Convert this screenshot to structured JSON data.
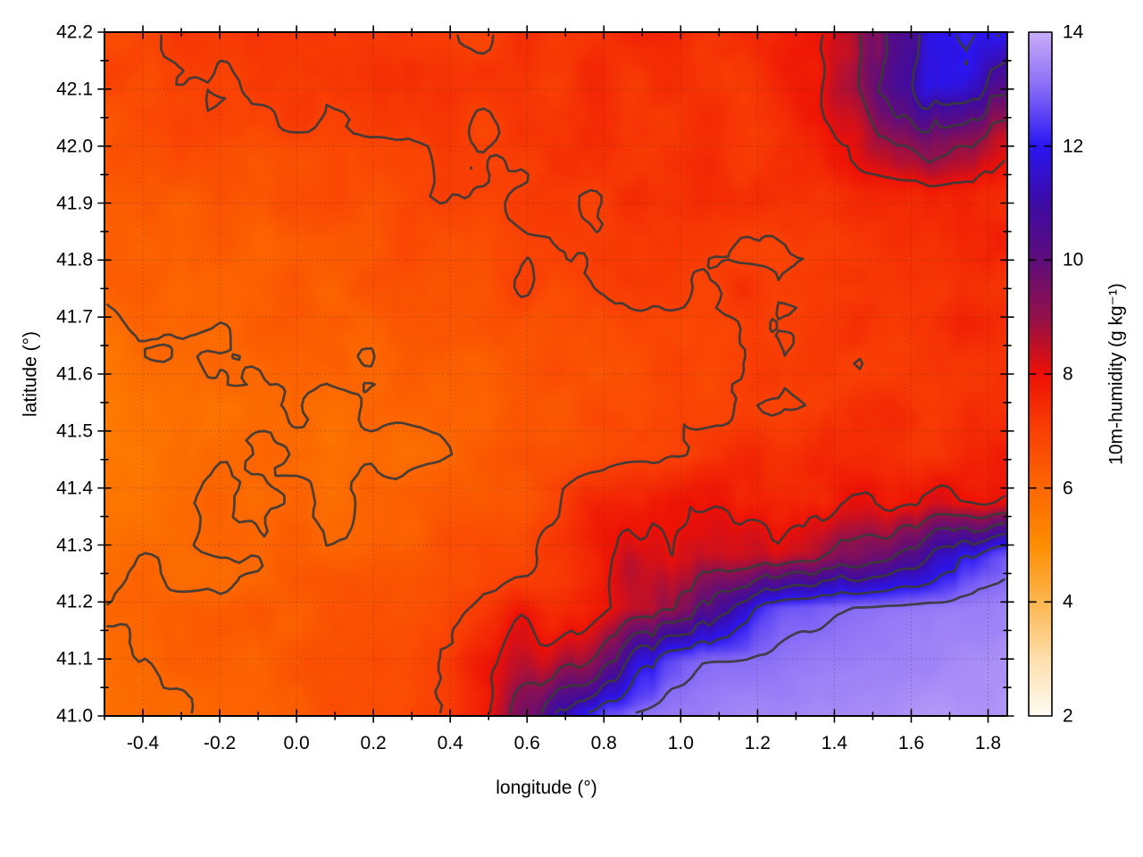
{
  "figure": {
    "xlabel": "longitude (°)",
    "ylabel": "latitude (°)",
    "colorbar_label": "10m-humidity (g kg⁻¹)",
    "background": "#ffffff",
    "axis_color": "#000000",
    "grid_dot_color": "rgba(70,45,20,0.5)"
  },
  "chart_data": {
    "type": "heatmap",
    "title": "",
    "xlabel": "longitude (°)",
    "ylabel": "latitude (°)",
    "colorbar_label": "10m-humidity (g kg⁻¹)",
    "xlim": [
      -0.5,
      1.85
    ],
    "ylim": [
      41.0,
      42.2
    ],
    "clim": [
      2,
      14
    ],
    "grid_on": true,
    "x_major_ticks": [
      -0.4,
      -0.2,
      0.0,
      0.2,
      0.4,
      0.6,
      0.8,
      1.0,
      1.2,
      1.4,
      1.6,
      1.8
    ],
    "x_major_labels": [
      "-0.4",
      "-0.2",
      "0.0",
      "0.2",
      "0.4",
      "0.6",
      "0.8",
      "1.0",
      "1.2",
      "1.4",
      "1.6",
      "1.8"
    ],
    "x_minor_ticks": [
      -0.5,
      -0.3,
      -0.1,
      0.1,
      0.3,
      0.5,
      0.7,
      0.9,
      1.1,
      1.3,
      1.5,
      1.7
    ],
    "y_major_ticks": [
      41.0,
      41.1,
      41.2,
      41.3,
      41.4,
      41.5,
      41.6,
      41.7,
      41.8,
      41.9,
      42.0,
      42.1,
      42.2
    ],
    "y_major_labels": [
      "41.0",
      "41.1",
      "41.2",
      "41.3",
      "41.4",
      "41.5",
      "41.6",
      "41.7",
      "41.8",
      "41.9",
      "42.0",
      "42.1",
      "42.2"
    ],
    "y_minor_ticks": [
      41.05,
      41.15,
      41.25,
      41.35,
      41.45,
      41.55,
      41.65,
      41.75,
      41.85,
      41.95,
      42.05,
      42.15
    ],
    "colorbar_ticks": [
      2,
      4,
      6,
      8,
      10,
      12,
      14
    ],
    "colorbar_tick_labels": [
      "2",
      "4",
      "6",
      "8",
      "10",
      "12",
      "14"
    ],
    "colorbar_dash_levels": [
      4,
      6,
      8,
      10,
      12
    ],
    "palette": [
      [
        2,
        "#fffcf2"
      ],
      [
        3,
        "#fedfac"
      ],
      [
        4,
        "#fcb64e"
      ],
      [
        5,
        "#fe8d00"
      ],
      [
        6,
        "#fc6700"
      ],
      [
        7,
        "#f94004"
      ],
      [
        8,
        "#ed1005"
      ],
      [
        9,
        "#92104a"
      ],
      [
        10,
        "#5e0d7b"
      ],
      [
        11,
        "#3c0ba5"
      ],
      [
        12,
        "#2a16f2"
      ],
      [
        13,
        "#8569f6"
      ],
      [
        14,
        "#c9aef8"
      ]
    ],
    "contour_levels": [
      5,
      6,
      7,
      8,
      9,
      10,
      11,
      12,
      13
    ],
    "contour_color": "#3a3a3a",
    "grid": {
      "comment": "10m humidity (g/kg), rows ordered north(42.2) to south(41.0), cols west(-0.5) to east(1.85)",
      "ncols": 25,
      "nrows": 14,
      "values_north_to_south": [
        [
          6.9,
          7.0,
          7.1,
          7.0,
          7.1,
          7.2,
          7.1,
          7.2,
          7.3,
          7.2,
          7.1,
          7.3,
          7.2,
          7.3,
          7.4,
          7.3,
          7.2,
          7.4,
          7.5,
          7.7,
          8.6,
          10.2,
          11.6,
          12.2,
          11.7
        ],
        [
          6.8,
          6.9,
          6.8,
          6.9,
          7.0,
          7.1,
          7.0,
          7.1,
          7.2,
          7.1,
          7.2,
          7.1,
          7.2,
          7.4,
          7.3,
          7.4,
          7.3,
          7.3,
          7.5,
          7.9,
          8.9,
          10.6,
          11.9,
          11.4,
          10.4
        ],
        [
          6.6,
          6.7,
          6.8,
          6.7,
          6.8,
          6.9,
          6.8,
          6.9,
          7.0,
          7.1,
          7.0,
          7.2,
          7.1,
          7.3,
          7.4,
          7.3,
          7.4,
          7.3,
          7.3,
          7.5,
          8.1,
          9.1,
          9.5,
          9.0,
          8.3
        ],
        [
          6.4,
          6.5,
          6.4,
          6.6,
          6.5,
          6.7,
          6.6,
          6.8,
          6.7,
          6.9,
          7.0,
          6.9,
          7.1,
          7.0,
          7.3,
          7.2,
          7.4,
          7.2,
          7.4,
          7.3,
          7.5,
          7.6,
          7.8,
          7.7,
          7.6
        ],
        [
          6.2,
          6.3,
          6.2,
          6.4,
          6.3,
          6.5,
          6.6,
          6.5,
          6.7,
          6.6,
          6.8,
          7.0,
          7.2,
          7.1,
          7.1,
          7.0,
          7.2,
          7.1,
          7.0,
          7.2,
          7.3,
          7.4,
          7.5,
          7.6,
          7.5
        ],
        [
          6.0,
          6.1,
          6.0,
          6.2,
          6.1,
          6.3,
          6.2,
          6.4,
          6.3,
          6.5,
          6.6,
          6.8,
          6.7,
          6.8,
          6.9,
          7.0,
          6.9,
          7.1,
          7.0,
          7.2,
          7.1,
          7.3,
          7.4,
          7.5,
          7.4
        ],
        [
          5.8,
          5.9,
          6.0,
          5.9,
          6.1,
          6.0,
          6.2,
          6.1,
          6.3,
          6.4,
          6.3,
          6.5,
          6.6,
          6.7,
          6.8,
          6.9,
          7.0,
          6.9,
          7.1,
          7.0,
          7.2,
          7.1,
          7.3,
          7.4,
          7.3
        ],
        [
          5.6,
          5.7,
          5.8,
          5.9,
          5.8,
          6.0,
          5.9,
          6.1,
          6.2,
          6.1,
          6.3,
          6.4,
          6.5,
          6.6,
          6.7,
          6.8,
          6.9,
          7.0,
          7.1,
          7.0,
          7.2,
          7.3,
          7.2,
          7.4,
          7.5
        ],
        [
          5.7,
          5.6,
          5.8,
          5.7,
          5.9,
          6.0,
          5.9,
          6.1,
          6.0,
          6.2,
          6.3,
          6.4,
          6.6,
          6.7,
          6.8,
          7.0,
          7.2,
          7.3,
          7.2,
          7.4,
          7.3,
          7.5,
          7.4,
          7.6,
          7.5
        ],
        [
          5.8,
          5.7,
          5.9,
          6.0,
          5.9,
          6.1,
          6.0,
          6.2,
          6.1,
          6.3,
          6.5,
          6.6,
          6.8,
          7.8,
          7.6,
          7.9,
          7.8,
          7.7,
          7.8,
          7.7,
          7.9,
          7.8,
          8.0,
          8.1,
          8.3
        ],
        [
          5.9,
          6.0,
          5.9,
          6.1,
          6.0,
          6.2,
          6.1,
          6.3,
          6.4,
          6.6,
          6.8,
          7.0,
          7.2,
          7.5,
          8.4,
          8.1,
          8.3,
          8.4,
          8.3,
          8.6,
          9.1,
          9.8,
          10.8,
          12.0,
          12.8
        ],
        [
          6.0,
          6.1,
          6.2,
          6.1,
          6.3,
          6.2,
          6.4,
          6.5,
          6.6,
          6.8,
          7.2,
          7.7,
          7.5,
          7.9,
          8.3,
          8.9,
          10.0,
          11.5,
          12.6,
          12.9,
          13.0,
          13.1,
          13.2,
          13.3,
          13.4
        ],
        [
          5.8,
          6.0,
          6.1,
          6.2,
          6.2,
          6.4,
          6.5,
          6.7,
          6.6,
          7.0,
          7.6,
          8.3,
          8.1,
          9.1,
          11.0,
          12.7,
          13.0,
          13.1,
          13.2,
          13.3,
          13.3,
          13.4,
          13.4,
          13.5,
          13.5
        ],
        [
          5.7,
          5.9,
          6.0,
          6.2,
          6.3,
          6.3,
          6.6,
          6.5,
          6.8,
          7.2,
          7.8,
          9.0,
          10.5,
          12.4,
          13.0,
          13.2,
          13.3,
          13.4,
          13.4,
          13.5,
          13.5,
          13.5,
          13.6,
          13.6,
          13.6
        ]
      ]
    }
  }
}
